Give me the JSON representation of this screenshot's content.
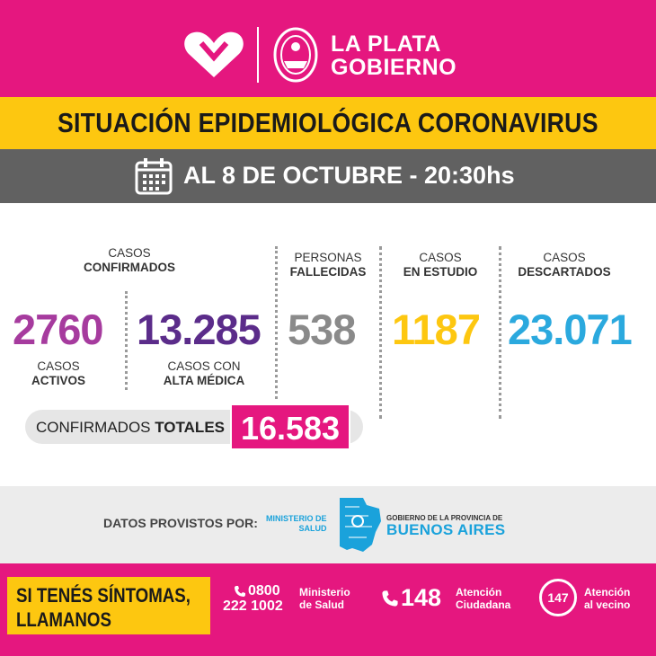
{
  "header": {
    "brand_line1": "LA PLATA",
    "brand_line2": "GOBIERNO",
    "logo_icon": "heart-icon",
    "seal_icon": "city-seal-icon"
  },
  "title": "SITUACIÓN EPIDEMIOLÓGICA CORONAVIRUS",
  "date": {
    "icon": "calendar-icon",
    "text": "AL 8 DE OCTUBRE - 20:30hs"
  },
  "stats": {
    "confirmados": {
      "line1": "CASOS",
      "line2": "CONFIRMADOS"
    },
    "activos": {
      "value": "2760",
      "line1": "CASOS",
      "line2": "ACTIVOS",
      "color": "#a63b9e"
    },
    "alta": {
      "value": "13.285",
      "line1": "CASOS CON",
      "line2": "ALTA MÉDICA",
      "color": "#5b2c8a"
    },
    "fallecidas": {
      "value": "538",
      "line1": "PERSONAS",
      "line2": "FALLECIDAS",
      "color": "#8a8a8a"
    },
    "estudio": {
      "value": "1187",
      "line1": "CASOS",
      "line2": "EN ESTUDIO",
      "color": "#fdc710"
    },
    "descartados": {
      "value": "23.071",
      "line1": "CASOS",
      "line2": "DESCARTADOS",
      "color": "#2ba9de"
    }
  },
  "totals": {
    "label_normal": "CONFIRMADOS ",
    "label_bold": "TOTALES",
    "value": "16.583"
  },
  "source": {
    "label": "DATOS PROVISTOS POR:",
    "ministry_line1": "MINISTERIO DE",
    "ministry_line2": "SALUD",
    "gov_line": "GOBIERNO DE LA PROVINCIA DE",
    "province": "BUENOS AIRES",
    "map_icon": "province-map-icon"
  },
  "footer": {
    "symptoms_line1": "SI TENÉS SÍNTOMAS,",
    "symptoms_line2": "LLAMANOS",
    "phone1_num1": "0800",
    "phone1_num2": "222 1002",
    "phone1_lbl1": "Ministerio",
    "phone1_lbl2": "de Salud",
    "phone2_num": "148",
    "phone2_lbl1": "Atención",
    "phone2_lbl2": "Ciudadana",
    "phone3_num": "147",
    "phone3_lbl1": "Atención",
    "phone3_lbl2": "al vecino",
    "phone_icon": "phone-icon",
    "colors": {
      "pink": "#e5177f",
      "yellow": "#fdc710"
    }
  }
}
